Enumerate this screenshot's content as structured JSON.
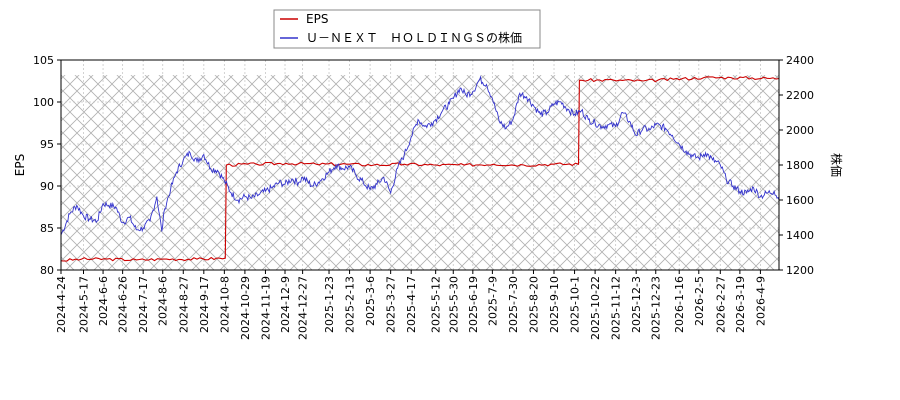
{
  "chart_data": {
    "type": "line",
    "title": "",
    "legend": {
      "placement": "top-center",
      "entries": [
        {
          "name": "EPS",
          "color": "#cc0000"
        },
        {
          "name": "Ｕ－ＮＥＸＴ　ＨＯＬＤＩＮＧＳの株価",
          "color": "#3333cc"
        }
      ]
    },
    "grid": true,
    "hatched_range": {
      "x_start": "2024-04-24",
      "x_end": "2026-04-28",
      "y_left": [
        80,
        103.2
      ]
    },
    "y_left": {
      "label": "EPS",
      "range": [
        80,
        105
      ],
      "ticks": [
        80,
        85,
        90,
        95,
        100,
        105
      ]
    },
    "y_right": {
      "label": "株価",
      "range": [
        1200,
        2400
      ],
      "ticks": [
        1200,
        1400,
        1600,
        1800,
        2000,
        2200,
        2400
      ]
    },
    "x_range": [
      "2024-04-24",
      "2026-04-28"
    ],
    "x_ticks": [
      "2024-4-24",
      "2024-5-17",
      "2024-6-6",
      "2024-6-26",
      "2024-7-17",
      "2024-8-6",
      "2024-8-27",
      "2024-9-17",
      "2024-10-8",
      "2024-10-29",
      "2024-11-19",
      "2024-12-9",
      "2024-12-27",
      "2025-1-23",
      "2025-2-13",
      "2025-3-6",
      "2025-3-27",
      "2025-4-17",
      "2025-5-12",
      "2025-5-30",
      "2025-6-19",
      "2025-7-9",
      "2025-7-30",
      "2025-8-20",
      "2025-9-10",
      "2025-10-1",
      "2025-10-22",
      "2025-11-12",
      "2025-12-3",
      "2025-12-23",
      "2026-1-16",
      "2026-2-5",
      "2026-2-27",
      "2026-3-19",
      "2026-4-9"
    ],
    "series": [
      {
        "name": "EPS",
        "color": "#cc0000",
        "axis": "left",
        "points": [
          [
            "2024-04-24",
            81.1
          ],
          [
            "2024-05-15",
            81.3
          ],
          [
            "2024-06-10",
            81.3
          ],
          [
            "2024-07-10",
            81.2
          ],
          [
            "2024-08-10",
            81.3
          ],
          [
            "2024-09-10",
            81.3
          ],
          [
            "2024-10-09",
            81.4
          ],
          [
            "2024-10-10",
            92.5
          ],
          [
            "2024-11-10",
            92.6
          ],
          [
            "2024-12-10",
            92.7
          ],
          [
            "2025-01-10",
            92.6
          ],
          [
            "2025-02-10",
            92.6
          ],
          [
            "2025-03-10",
            92.5
          ],
          [
            "2025-04-10",
            92.6
          ],
          [
            "2025-05-10",
            92.5
          ],
          [
            "2025-06-10",
            92.5
          ],
          [
            "2025-07-10",
            92.6
          ],
          [
            "2025-08-10",
            92.5
          ],
          [
            "2025-09-10",
            92.6
          ],
          [
            "2025-10-05",
            92.6
          ],
          [
            "2025-10-06",
            102.6
          ],
          [
            "2025-11-10",
            102.6
          ],
          [
            "2025-12-10",
            102.5
          ],
          [
            "2026-01-10",
            102.7
          ],
          [
            "2026-02-10",
            102.9
          ],
          [
            "2026-03-10",
            102.9
          ],
          [
            "2026-04-28",
            102.8
          ]
        ]
      },
      {
        "name": "Ｕ－ＮＥＸＴ　ＨＯＬＤＩＮＧＳの株価",
        "color": "#3333cc",
        "axis": "right",
        "points": [
          [
            "2024-04-24",
            1400
          ],
          [
            "2024-05-03",
            1520
          ],
          [
            "2024-05-10",
            1570
          ],
          [
            "2024-05-17",
            1510
          ],
          [
            "2024-05-24",
            1490
          ],
          [
            "2024-05-31",
            1480
          ],
          [
            "2024-06-06",
            1580
          ],
          [
            "2024-06-12",
            1570
          ],
          [
            "2024-06-19",
            1560
          ],
          [
            "2024-06-26",
            1470
          ],
          [
            "2024-07-03",
            1500
          ],
          [
            "2024-07-10",
            1430
          ],
          [
            "2024-07-17",
            1440
          ],
          [
            "2024-07-24",
            1480
          ],
          [
            "2024-07-31",
            1620
          ],
          [
            "2024-08-05",
            1420
          ],
          [
            "2024-08-08",
            1550
          ],
          [
            "2024-08-14",
            1660
          ],
          [
            "2024-08-20",
            1760
          ],
          [
            "2024-08-27",
            1830
          ],
          [
            "2024-09-03",
            1870
          ],
          [
            "2024-09-10",
            1820
          ],
          [
            "2024-09-17",
            1860
          ],
          [
            "2024-09-24",
            1780
          ],
          [
            "2024-10-01",
            1770
          ],
          [
            "2024-10-08",
            1710
          ],
          [
            "2024-10-15",
            1640
          ],
          [
            "2024-10-22",
            1600
          ],
          [
            "2024-10-29",
            1620
          ],
          [
            "2024-11-05",
            1610
          ],
          [
            "2024-11-12",
            1630
          ],
          [
            "2024-11-19",
            1650
          ],
          [
            "2024-11-26",
            1670
          ],
          [
            "2024-12-03",
            1700
          ],
          [
            "2024-12-09",
            1690
          ],
          [
            "2024-12-16",
            1720
          ],
          [
            "2024-12-23",
            1700
          ],
          [
            "2024-12-27",
            1730
          ],
          [
            "2025-01-06",
            1680
          ],
          [
            "2025-01-14",
            1710
          ],
          [
            "2025-01-23",
            1760
          ],
          [
            "2025-01-30",
            1800
          ],
          [
            "2025-02-06",
            1780
          ],
          [
            "2025-02-13",
            1790
          ],
          [
            "2025-02-20",
            1740
          ],
          [
            "2025-02-27",
            1700
          ],
          [
            "2025-03-06",
            1660
          ],
          [
            "2025-03-13",
            1690
          ],
          [
            "2025-03-20",
            1730
          ],
          [
            "2025-03-27",
            1640
          ],
          [
            "2025-04-03",
            1780
          ],
          [
            "2025-04-10",
            1860
          ],
          [
            "2025-04-17",
            1960
          ],
          [
            "2025-04-24",
            2060
          ],
          [
            "2025-05-01",
            2020
          ],
          [
            "2025-05-08",
            2040
          ],
          [
            "2025-05-12",
            2060
          ],
          [
            "2025-05-19",
            2110
          ],
          [
            "2025-05-26",
            2150
          ],
          [
            "2025-05-30",
            2180
          ],
          [
            "2025-06-06",
            2240
          ],
          [
            "2025-06-12",
            2200
          ],
          [
            "2025-06-19",
            2220
          ],
          [
            "2025-06-26",
            2290
          ],
          [
            "2025-07-03",
            2260
          ],
          [
            "2025-07-09",
            2180
          ],
          [
            "2025-07-16",
            2050
          ],
          [
            "2025-07-23",
            2010
          ],
          [
            "2025-07-30",
            2060
          ],
          [
            "2025-08-06",
            2210
          ],
          [
            "2025-08-13",
            2190
          ],
          [
            "2025-08-20",
            2140
          ],
          [
            "2025-08-27",
            2090
          ],
          [
            "2025-09-03",
            2100
          ],
          [
            "2025-09-10",
            2150
          ],
          [
            "2025-09-17",
            2160
          ],
          [
            "2025-09-24",
            2120
          ],
          [
            "2025-10-01",
            2090
          ],
          [
            "2025-10-08",
            2110
          ],
          [
            "2025-10-15",
            2060
          ],
          [
            "2025-10-22",
            2040
          ],
          [
            "2025-10-29",
            2020
          ],
          [
            "2025-11-05",
            2030
          ],
          [
            "2025-11-12",
            2020
          ],
          [
            "2025-11-19",
            2100
          ],
          [
            "2025-11-26",
            2050
          ],
          [
            "2025-12-03",
            1970
          ],
          [
            "2025-12-10",
            2010
          ],
          [
            "2025-12-17",
            2000
          ],
          [
            "2025-12-23",
            2030
          ],
          [
            "2026-01-02",
            2010
          ],
          [
            "2026-01-09",
            1970
          ],
          [
            "2026-01-16",
            1920
          ],
          [
            "2026-01-23",
            1880
          ],
          [
            "2026-01-30",
            1850
          ],
          [
            "2026-02-05",
            1840
          ],
          [
            "2026-02-12",
            1870
          ],
          [
            "2026-02-19",
            1830
          ],
          [
            "2026-02-27",
            1800
          ],
          [
            "2026-03-05",
            1720
          ],
          [
            "2026-03-12",
            1680
          ],
          [
            "2026-03-19",
            1650
          ],
          [
            "2026-03-26",
            1640
          ],
          [
            "2026-04-02",
            1670
          ],
          [
            "2026-04-09",
            1620
          ],
          [
            "2026-04-16",
            1640
          ],
          [
            "2026-04-23",
            1650
          ],
          [
            "2026-04-28",
            1600
          ]
        ]
      }
    ]
  }
}
